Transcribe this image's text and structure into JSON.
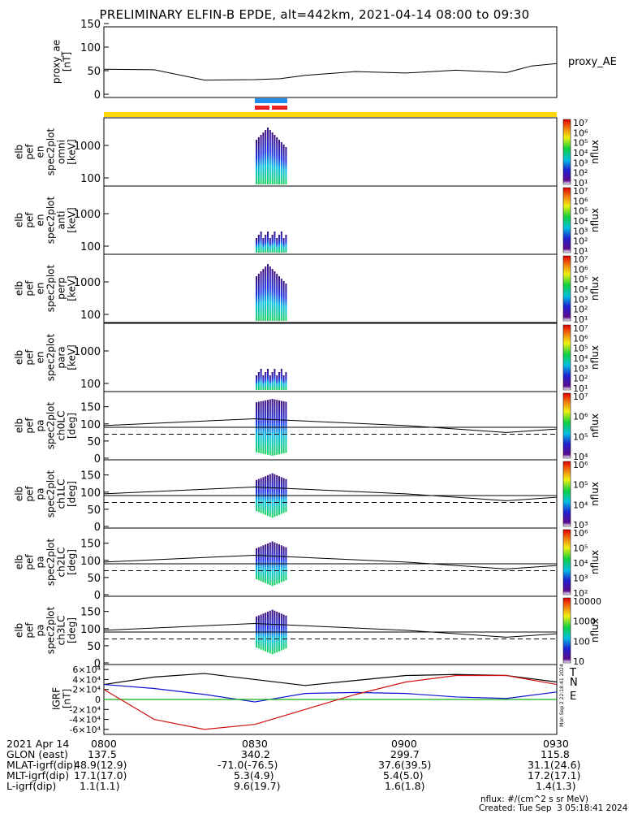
{
  "title": "PRELIMINARY ELFIN-B EPDE, alt=442km, 2021-04-14 08:00 to 09:30",
  "colors": {
    "bar_yellow": "#ffd800",
    "bar_blue": "#1e8ce8",
    "bar_red": "#e8201e",
    "grf_black": "#000000",
    "grf_blue": "#1010d0",
    "grf_red": "#d01010",
    "grf_green": "#10b010"
  },
  "colorbar_label": "nflux",
  "footer": {
    "labels": [
      "2021 Apr 14",
      "GLON (east)",
      "MLAT-igrf(dip)",
      "MLT-igrf(dip)",
      "L-igrf(dip)"
    ],
    "times": [
      "0800",
      "0830",
      "0900",
      "0930"
    ],
    "rows": [
      [
        "137.5",
        "340.2",
        "299.7",
        "115.8"
      ],
      [
        "48.9(12.9)",
        "-71.0(-76.5)",
        "37.6(39.5)",
        "31.1(24.6)"
      ],
      [
        "17.1(17.0)",
        "5.3(4.9)",
        "5.4(5.0)",
        "17.2(17.1)"
      ],
      [
        "1.1(1.1)",
        "9.6(19.7)",
        "1.6(1.8)",
        "1.4(1.3)"
      ]
    ],
    "units": "nflux: #/(cm^2 s sr MeV)",
    "created": "Created: Tue Sep  3 05:18:41 2024",
    "side_stamp": "Mon Sep 2 22:18:41 2024"
  },
  "chart_data": [
    {
      "type": "line",
      "panel": "proxy_ae",
      "ylabel": "proxy_ae [nT]",
      "legend": "proxy_AE",
      "ylim": [
        0,
        150
      ],
      "yticks": [
        "0",
        "50",
        "100",
        "150"
      ],
      "x_minutes": [
        0,
        10,
        20,
        30,
        35,
        40,
        50,
        60,
        70,
        80,
        85,
        90
      ],
      "values": [
        53,
        52,
        30,
        31,
        33,
        40,
        48,
        45,
        51,
        46,
        60,
        65
      ]
    },
    {
      "type": "heatmap",
      "panel": "en omni",
      "ylabel": "elb pef en spec2plot omni [keV]",
      "yscale": "log",
      "yticks": [
        "100",
        "1000"
      ],
      "cbar_ticks": [
        "10¹",
        "10²",
        "10³",
        "10⁴",
        "10⁵",
        "10⁶",
        "10⁷"
      ]
    },
    {
      "type": "heatmap",
      "panel": "en anti",
      "ylabel": "elb pef en spec2plot anti [keV]",
      "yscale": "log",
      "yticks": [
        "100",
        "1000"
      ],
      "cbar_ticks": [
        "10¹",
        "10²",
        "10³",
        "10⁴",
        "10⁵",
        "10⁶",
        "10⁷"
      ]
    },
    {
      "type": "heatmap",
      "panel": "en perp",
      "ylabel": "elb pef en spec2plot perp [keV]",
      "yscale": "log",
      "yticks": [
        "100",
        "1000"
      ],
      "cbar_ticks": [
        "10¹",
        "10²",
        "10³",
        "10⁴",
        "10⁵",
        "10⁶",
        "10⁷"
      ]
    },
    {
      "type": "heatmap",
      "panel": "en para",
      "ylabel": "elb pef en spec2plot para [keV]",
      "yscale": "log",
      "yticks": [
        "100",
        "1000"
      ],
      "cbar_ticks": [
        "10¹",
        "10²",
        "10³",
        "10⁴",
        "10⁵",
        "10⁶",
        "10⁷"
      ]
    },
    {
      "type": "heatmap",
      "panel": "pa ch0LC",
      "ylabel": "elb pef pa spec2plot ch0LC [deg]",
      "ylim": [
        0,
        180
      ],
      "yticks": [
        "0",
        "50",
        "100",
        "150"
      ],
      "cbar_ticks": [
        "10⁴",
        "10⁵",
        "10⁶",
        "10⁷"
      ]
    },
    {
      "type": "heatmap",
      "panel": "pa ch1LC",
      "ylabel": "elb pef pa spec2plot ch1LC [deg]",
      "ylim": [
        0,
        180
      ],
      "yticks": [
        "0",
        "50",
        "100",
        "150"
      ],
      "cbar_ticks": [
        "10³",
        "10⁴",
        "10⁵",
        "10⁶"
      ]
    },
    {
      "type": "heatmap",
      "panel": "pa ch2LC",
      "ylabel": "elb pef pa spec2plot ch2LC [deg]",
      "ylim": [
        0,
        180
      ],
      "yticks": [
        "0",
        "50",
        "100",
        "150"
      ],
      "cbar_ticks": [
        "10²",
        "10³",
        "10⁴",
        "10⁵",
        "10⁶"
      ]
    },
    {
      "type": "heatmap",
      "panel": "pa ch3LC",
      "ylabel": "elb pef pa spec2plot ch3LC [deg]",
      "ylim": [
        0,
        180
      ],
      "yticks": [
        "0",
        "50",
        "100",
        "150"
      ],
      "cbar_ticks": [
        "10",
        "100",
        "1000",
        "10000"
      ]
    },
    {
      "type": "line",
      "panel": "IGRF",
      "ylabel": "IGRF [nT]",
      "ylim": [
        -70000,
        70000
      ],
      "yticks": [
        "-6×10⁴",
        "-4×10⁴",
        "-2×10⁴",
        "0",
        "2×10⁴",
        "4×10⁴",
        "6×10⁴"
      ],
      "x_minutes": [
        0,
        10,
        20,
        30,
        40,
        50,
        60,
        70,
        80,
        90
      ],
      "series": [
        {
          "name": "T",
          "color": "#000000",
          "values": [
            30000,
            45000,
            52000,
            40000,
            28000,
            38000,
            48000,
            50000,
            48000,
            35000
          ]
        },
        {
          "name": "N",
          "color": "#1010d0",
          "values": [
            30000,
            22000,
            10000,
            -5000,
            12000,
            14000,
            12000,
            5000,
            2000,
            15000
          ]
        },
        {
          "name": "E",
          "color": "#10b010",
          "values": [
            0,
            0,
            0,
            0,
            0,
            0,
            0,
            0,
            0,
            0
          ]
        },
        {
          "name": "",
          "color": "#d01010",
          "values": [
            20000,
            -40000,
            -60000,
            -50000,
            -20000,
            10000,
            35000,
            48000,
            48000,
            30000
          ]
        }
      ]
    }
  ]
}
